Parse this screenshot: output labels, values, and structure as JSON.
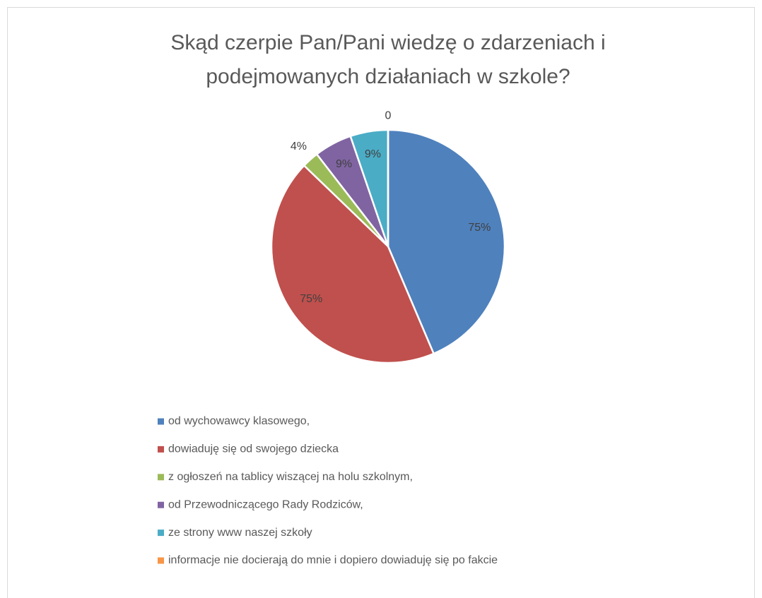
{
  "chart_data": {
    "type": "pie",
    "title": [
      "Skąd czerpie Pan/Pani  wiedzę o zdarzeniach i",
      "podejmowanych działaniach w szkole?"
    ],
    "categories": [
      "od wychowawcy klasowego,",
      "dowiaduję się od swojego dziecka",
      "z ogłoszeń na tablicy wiszącej na holu szkolnym,",
      "od Przewodniczącego Rady Rodziców,",
      "ze strony www naszej szkoły",
      "informacje nie docierają do mnie i dopiero dowiaduję się po fakcie"
    ],
    "values": [
      75,
      75,
      4,
      9,
      9,
      0
    ],
    "value_labels": [
      "75%",
      "75%",
      "4%",
      "9%",
      "9%",
      "0"
    ],
    "colors": [
      "#4f81bd",
      "#c0504d",
      "#9bbb59",
      "#8064a2",
      "#4bacc6",
      "#f79646"
    ],
    "legend": "bottom"
  }
}
